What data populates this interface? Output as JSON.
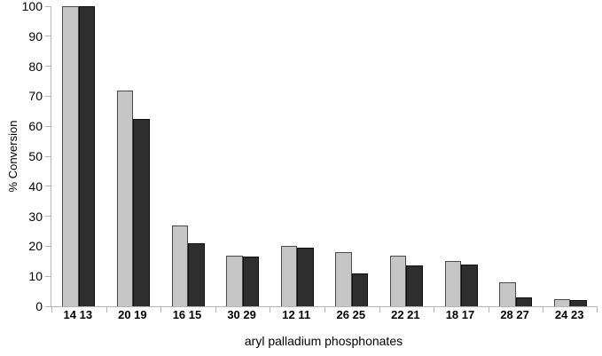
{
  "chart_data": {
    "type": "bar",
    "title": "",
    "xlabel": "aryl palladium phosphonates",
    "ylabel": "% Conversion",
    "categories": [
      "14 13",
      "20 19",
      "16 15",
      "30 29",
      "12 11",
      "26 25",
      "22 21",
      "18 17",
      "28 27",
      "24 23"
    ],
    "series": [
      {
        "name": "light-gray-bars",
        "color": "#c6c6c6",
        "border_color": "#4a4a4a",
        "values": [
          100,
          72,
          27,
          17,
          20,
          18,
          17,
          15,
          8,
          2.5
        ]
      },
      {
        "name": "dark-gray-bars",
        "color": "#2e2e2e",
        "border_color": "#0d0d0d",
        "values": [
          100,
          62.5,
          21,
          16.5,
          19.5,
          11,
          13.5,
          14,
          3,
          2
        ]
      }
    ],
    "ylim": [
      0,
      100
    ],
    "yticks": [
      0,
      10,
      20,
      30,
      40,
      50,
      60,
      70,
      80,
      90,
      100
    ],
    "grid": false,
    "legend": false,
    "axis_color": "#b5b5b5",
    "background": "#ffffff"
  }
}
